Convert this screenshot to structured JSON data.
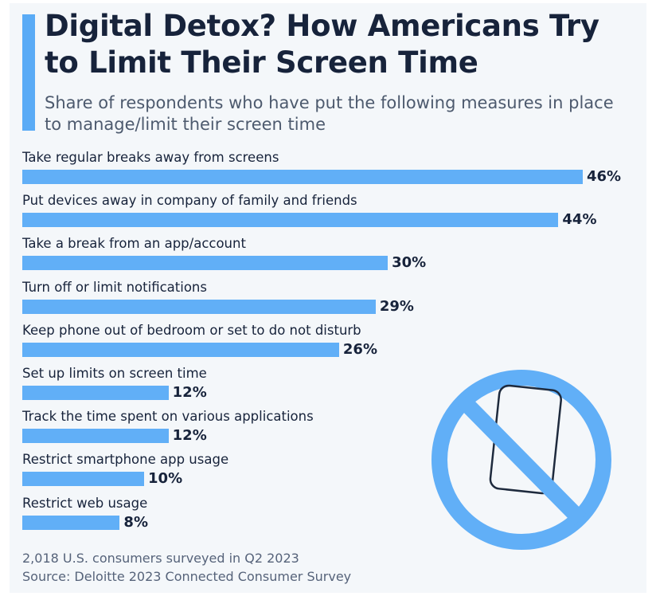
{
  "header": {
    "title": "Digital Detox? How Americans Try to Limit Their Screen Time",
    "subtitle": "Share of respondents who have put the following measures in place to manage/limit their screen time"
  },
  "chart_data": {
    "type": "bar",
    "orientation": "horizontal",
    "categories": [
      "Take regular breaks away from screens",
      "Put devices away in company of family and friends",
      "Take a break from an app/account",
      "Turn off or limit notifications",
      "Keep phone out of bedroom or set to do not disturb",
      "Set up limits on screen time",
      "Track the time spent on various applications",
      "Restrict smartphone app usage",
      "Restrict web usage"
    ],
    "values": [
      46,
      44,
      30,
      29,
      26,
      12,
      12,
      10,
      8
    ],
    "value_labels": [
      "46%",
      "44%",
      "30%",
      "29%",
      "26%",
      "12%",
      "12%",
      "10%",
      "8%"
    ],
    "unit": "%",
    "title": "Digital Detox? How Americans Try to Limit Their Screen Time",
    "xlabel": "",
    "ylabel": "",
    "xlim": [
      0,
      46
    ],
    "grid": false,
    "bar_color": "#61aff7"
  },
  "illustration": {
    "icon": "no-smartphone-icon",
    "color": "#61aff7"
  },
  "footer": {
    "note": "2,018 U.S. consumers surveyed in Q2 2023",
    "source": "Source: Deloitte 2023 Connected Consumer Survey"
  }
}
